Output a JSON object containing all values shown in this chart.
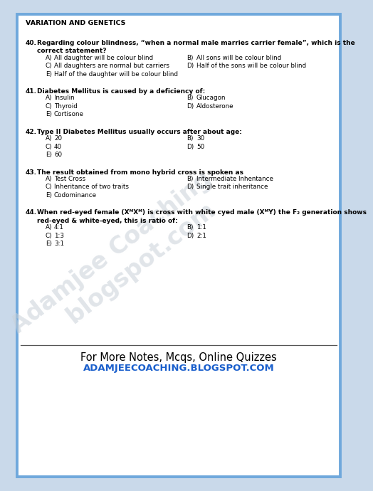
{
  "bg_color": "#c9d9ea",
  "card_color": "#ffffff",
  "border_color": "#6fa8dc",
  "header_text": "VARIATION AND GENETICS",
  "watermark_color": "#c8d0d8",
  "footer_line1": "For More Notes, Mcqs, Online Quizzes",
  "footer_line2": "ADAMJEECOACHING.BLOGSPOT.COM",
  "footer_line1_color": "#000000",
  "footer_line2_color": "#1a5fcc",
  "footer_line1_fontsize": 10.5,
  "footer_line2_fontsize": 9.5,
  "q_fontsize": 6.5,
  "opt_fontsize": 6.3,
  "header_fontsize": 6.8,
  "questions": [
    {
      "num": "40.",
      "text_line1": "Regarding colour blindness, “when a normal male marries carrier female”, which is the",
      "text_line2": "correct statement?",
      "options": [
        {
          "label": "A)",
          "text": "All daughter will be colour blind",
          "col": 0
        },
        {
          "label": "B)",
          "text": "All sons will be colour blind",
          "col": 1
        },
        {
          "label": "C)",
          "text": "All daughters are normal but carriers",
          "col": 0
        },
        {
          "label": "D)",
          "text": "Half of the sons will be colour blind",
          "col": 1
        },
        {
          "label": "E)",
          "text": "Half of the daughter will be colour blind",
          "col": 0
        }
      ]
    },
    {
      "num": "41.",
      "text_line1": "Diabetes Mellitus is caused by a deficiency of:",
      "text_line2": null,
      "options": [
        {
          "label": "A)",
          "text": "Insulin",
          "col": 0
        },
        {
          "label": "B)",
          "text": "Glucagon",
          "col": 1
        },
        {
          "label": "C)",
          "text": "Thyroid",
          "col": 0
        },
        {
          "label": "D)",
          "text": "Aldosterone",
          "col": 1
        },
        {
          "label": "E)",
          "text": "Cortisone",
          "col": 0
        }
      ]
    },
    {
      "num": "42.",
      "text_line1": "Type II Diabetes Mellitus usually occurs after about age:",
      "text_line2": null,
      "options": [
        {
          "label": "A)",
          "text": "20",
          "col": 0
        },
        {
          "label": "B)",
          "text": "30",
          "col": 1
        },
        {
          "label": "C)",
          "text": "40",
          "col": 0
        },
        {
          "label": "D)",
          "text": "50",
          "col": 1
        },
        {
          "label": "E)",
          "text": "60",
          "col": 0
        }
      ]
    },
    {
      "num": "43.",
      "text_line1": "The result obtained from mono hybrid cross is spoken as",
      "text_line2": null,
      "options": [
        {
          "label": "A)",
          "text": "Test Cross",
          "col": 0
        },
        {
          "label": "B)",
          "text": "Intermediate Inhentance",
          "col": 1
        },
        {
          "label": "C)",
          "text": "Inheritance of two traits",
          "col": 0
        },
        {
          "label": "D)",
          "text": "Single trait inheritance",
          "col": 1
        },
        {
          "label": "E)",
          "text": "Codominance",
          "col": 0
        }
      ]
    },
    {
      "num": "44.",
      "text_line1": "When red-eyed female (XᴹXᴹ) is cross with white cyed male (XᴹY) the F₂ generation shows",
      "text_line2": "red-eyed & white-eyed, this is ratio of:",
      "options": [
        {
          "label": "A)",
          "text": "4:1",
          "col": 0
        },
        {
          "label": "B)",
          "text": "1:1",
          "col": 1
        },
        {
          "label": "C)",
          "text": "1:3",
          "col": 0
        },
        {
          "label": "D)",
          "text": "2:1",
          "col": 1
        },
        {
          "label": "E)",
          "text": "3:1",
          "col": 0
        }
      ]
    }
  ]
}
